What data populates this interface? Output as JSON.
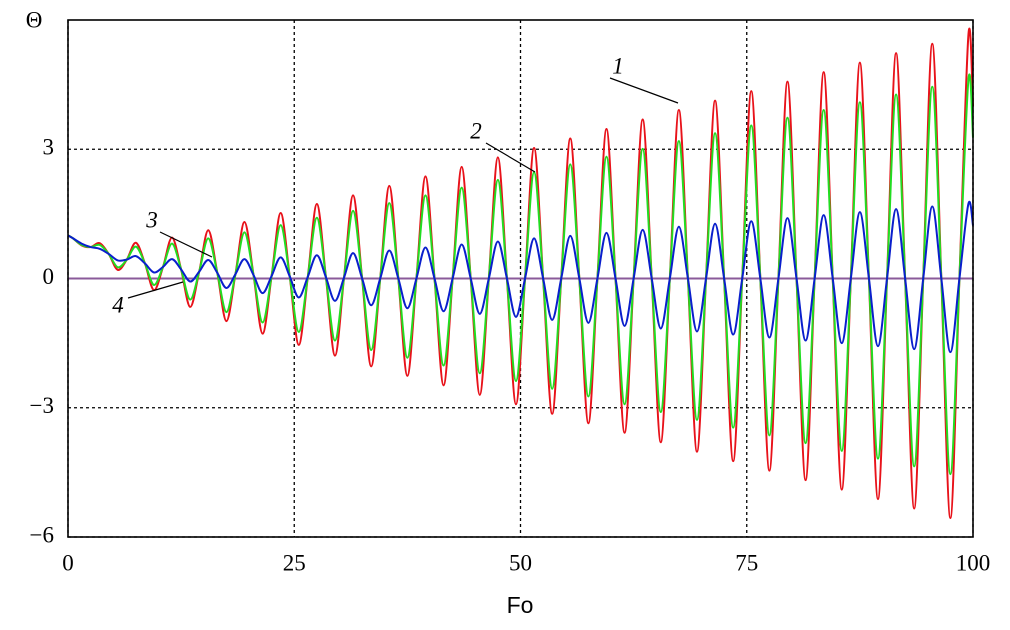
{
  "chart_data": {
    "type": "line",
    "xlabel": "Fo",
    "ylabel": "Θ",
    "xlim": [
      0,
      100
    ],
    "ylim": [
      -6,
      6
    ],
    "xticks": [
      0,
      25,
      50,
      75,
      100
    ],
    "yticks": [
      {
        "value": -6,
        "label": "−6"
      },
      {
        "value": -3,
        "label": "−3"
      },
      0,
      3
    ],
    "grid": true,
    "x": [
      0,
      0.5,
      1.5,
      2.5,
      3.5,
      4.5,
      5.5,
      6.5,
      7.5,
      8.5,
      9.5,
      10.5,
      11.5,
      12.5,
      13.5,
      14.5,
      15.5,
      16.5,
      17.5,
      18.5,
      19.5,
      20.5,
      21.5,
      22.5,
      23.5,
      24.5,
      25.5,
      26.5,
      27.5,
      28.5,
      29.5,
      30.5,
      31.5,
      32.5,
      33.5,
      34.5,
      35.5,
      36.5,
      37.5,
      38.5,
      39.5,
      40.5,
      41.5,
      42.5,
      43.5,
      44.5,
      45.5,
      46.5,
      47.5,
      48.5,
      49.5,
      50.5,
      51.5,
      52.5,
      53.5,
      54.5,
      55.5,
      56.5,
      57.5,
      58.5,
      59.5,
      60.5,
      61.5,
      62.5,
      63.5,
      64.5,
      65.5,
      66.5,
      67.5,
      68.5,
      69.5,
      70.5,
      71.5,
      72.5,
      73.5,
      74.5,
      75.5,
      76.5,
      77.5,
      78.5,
      79.5,
      80.5,
      81.5,
      82.5,
      83.5,
      84.5,
      85.5,
      86.5,
      87.5,
      88.5,
      89.5,
      90.5,
      91.5,
      92.5,
      93.5,
      94.5,
      95.5,
      96.5,
      97.5,
      98.5,
      99.5,
      100
    ],
    "series": [
      {
        "name": "1",
        "color": "#e8121a",
        "values": [
          1,
          0.94,
          0.77,
          0.73,
          0.82,
          0.57,
          0.2,
          0.44,
          0.83,
          0.35,
          -0.27,
          0.27,
          0.95,
          0.21,
          -0.66,
          0.16,
          1.12,
          0.13,
          -0.99,
          0.1,
          1.31,
          0.08,
          -1.28,
          0.06,
          1.52,
          0.05,
          -1.54,
          0.04,
          1.73,
          0.03,
          -1.79,
          0.02,
          1.93,
          0,
          -2.04,
          0,
          2.15,
          0,
          -2.26,
          0,
          2.37,
          0,
          -2.48,
          0,
          2.59,
          0,
          -2.7,
          0,
          2.81,
          0,
          -2.92,
          0,
          3.03,
          0,
          -3.14,
          0,
          3.25,
          0,
          -3.36,
          0,
          3.47,
          0,
          -3.58,
          0,
          3.69,
          0,
          -3.8,
          0,
          3.91,
          0,
          -4.02,
          0,
          4.13,
          0,
          -4.24,
          0,
          4.35,
          0,
          -4.46,
          0,
          4.57,
          0,
          -4.68,
          0,
          4.79,
          0,
          -4.9,
          0,
          5.01,
          0,
          -5.12,
          0,
          5.23,
          0,
          -5.34,
          0,
          5.45,
          0,
          -5.56,
          0,
          5.67,
          4.0
        ]
      },
      {
        "name": "2",
        "color": "#22dd22",
        "values": [
          1,
          0.94,
          0.78,
          0.73,
          0.78,
          0.57,
          0.26,
          0.44,
          0.74,
          0.35,
          -0.15,
          0.27,
          0.81,
          0.21,
          -0.49,
          0.16,
          0.93,
          0.13,
          -0.78,
          0.1,
          1.07,
          0.08,
          -1.02,
          0.06,
          1.24,
          0.05,
          -1.24,
          0.04,
          1.41,
          0.03,
          -1.44,
          0.02,
          1.57,
          0,
          -1.66,
          0,
          1.75,
          0,
          -1.84,
          0,
          1.93,
          0,
          -2.02,
          0,
          2.11,
          0,
          -2.2,
          0,
          2.29,
          0,
          -2.38,
          0,
          2.47,
          0,
          -2.56,
          0,
          2.65,
          0,
          -2.74,
          0,
          2.83,
          0,
          -2.92,
          0,
          3.01,
          0,
          -3.1,
          0,
          3.19,
          0,
          -3.28,
          0,
          3.37,
          0,
          -3.46,
          0,
          3.55,
          0,
          -3.64,
          0,
          3.73,
          0,
          -3.82,
          0,
          3.91,
          0,
          -4.0,
          0,
          4.09,
          0,
          -4.18,
          0,
          4.27,
          0,
          -4.36,
          0,
          4.45,
          0,
          -4.54,
          0,
          4.63,
          3.27
        ]
      },
      {
        "name": "3",
        "color": "#0a1fcc",
        "values": [
          1,
          0.94,
          0.81,
          0.73,
          0.69,
          0.57,
          0.42,
          0.44,
          0.52,
          0.35,
          0.14,
          0.27,
          0.45,
          0.21,
          -0.07,
          0.16,
          0.43,
          0.13,
          -0.22,
          0.1,
          0.45,
          0.08,
          -0.34,
          0.06,
          0.49,
          0.05,
          -0.44,
          0.04,
          0.54,
          0.03,
          -0.52,
          0.02,
          0.59,
          0,
          -0.62,
          0,
          0.65,
          0,
          -0.69,
          0,
          0.72,
          0,
          -0.76,
          0,
          0.79,
          0,
          -0.82,
          0,
          0.86,
          0,
          -0.89,
          0,
          0.93,
          0,
          -0.96,
          0,
          0.99,
          0,
          -1.03,
          0,
          1.06,
          0,
          -1.1,
          0,
          1.13,
          0,
          -1.16,
          0,
          1.2,
          0,
          -1.23,
          0,
          1.27,
          0,
          -1.3,
          0,
          1.33,
          0,
          -1.37,
          0,
          1.4,
          0,
          -1.44,
          0,
          1.47,
          0,
          -1.5,
          0,
          1.54,
          0,
          -1.57,
          0,
          1.61,
          0,
          -1.64,
          0,
          1.67,
          0,
          -1.71,
          0,
          1.74,
          1.23
        ]
      },
      {
        "name": "4",
        "color": "#8a5a9a",
        "x": [
          0,
          100
        ],
        "values": [
          0,
          0
        ]
      }
    ]
  }
}
